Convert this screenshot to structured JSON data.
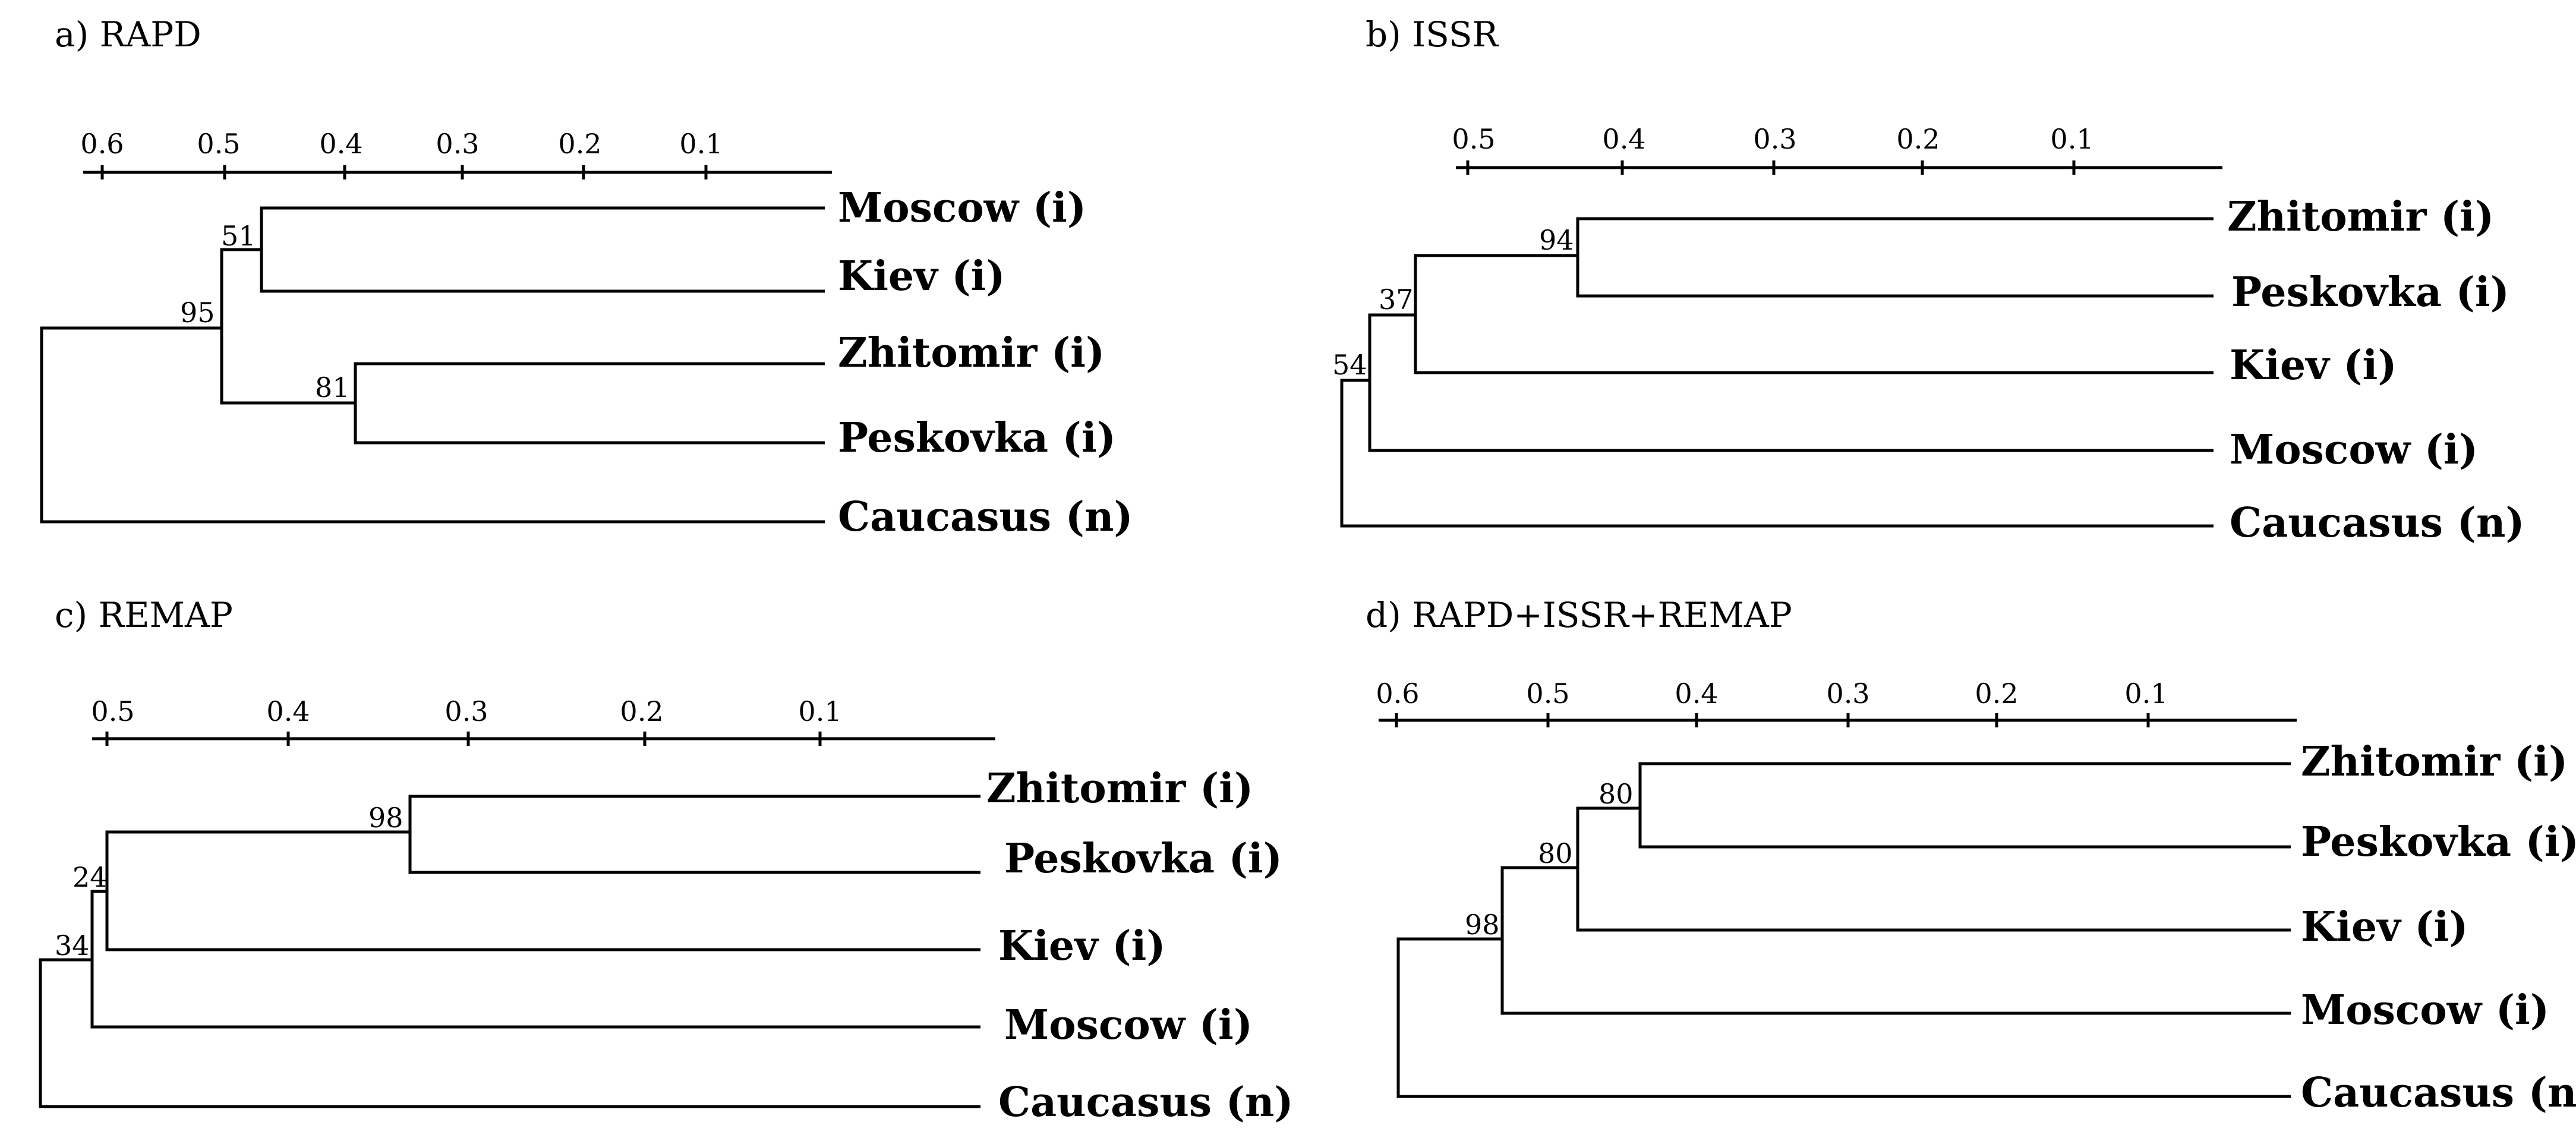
{
  "figure": {
    "panels": [
      {
        "id": "a",
        "title": "a) RAPD",
        "ticks": [
          "0.6",
          "0.5",
          "0.4",
          "0.3",
          "0.2",
          "0.1"
        ],
        "leaves": [
          "Moscow (i)",
          "Kiev (i)",
          "Zhitomir (i)",
          "Peskovka (i)",
          "Caucasus (n)"
        ],
        "bootstrap": [
          "51",
          "95",
          "81"
        ]
      },
      {
        "id": "b",
        "title": "b) ISSR",
        "ticks": [
          "0.5",
          "0.4",
          "0.3",
          "0.2",
          "0.1"
        ],
        "leaves": [
          "Zhitomir (i)",
          "Peskovka (i)",
          "Kiev (i)",
          "Moscow (i)",
          "Caucasus (n)"
        ],
        "bootstrap": [
          "94",
          "37",
          "54"
        ]
      },
      {
        "id": "c",
        "title": "c) REMAP",
        "ticks": [
          "0.5",
          "0.4",
          "0.3",
          "0.2",
          "0.1"
        ],
        "leaves": [
          "Zhitomir (i)",
          "Peskovka (i)",
          "Kiev (i)",
          "Moscow (i)",
          "Caucasus (n)"
        ],
        "bootstrap": [
          "98",
          "24",
          "34"
        ]
      },
      {
        "id": "d",
        "title": "d) RAPD+ISSR+REMAP",
        "ticks": [
          "0.6",
          "0.5",
          "0.4",
          "0.3",
          "0.2",
          "0.1"
        ],
        "leaves": [
          "Zhitomir (i)",
          "Peskovka (i)",
          "Kiev (i)",
          "Moscow (i)",
          "Caucasus (n)"
        ],
        "bootstrap": [
          "80",
          "80",
          "98"
        ]
      }
    ]
  }
}
